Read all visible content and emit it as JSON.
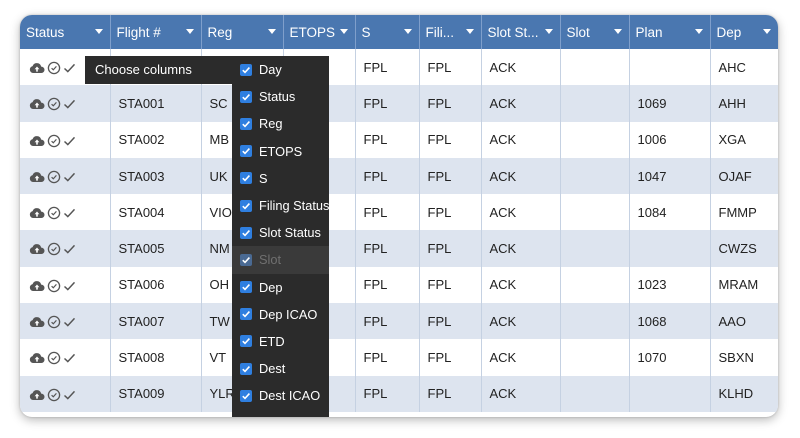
{
  "columns": [
    {
      "key": "status",
      "label": "Status"
    },
    {
      "key": "flight",
      "label": "Flight #"
    },
    {
      "key": "reg",
      "label": "Reg"
    },
    {
      "key": "etops",
      "label": "ETOPS"
    },
    {
      "key": "s",
      "label": "S"
    },
    {
      "key": "filing",
      "label": "Fili..."
    },
    {
      "key": "slotstatus",
      "label": "Slot St..."
    },
    {
      "key": "slot",
      "label": "Slot"
    },
    {
      "key": "plan",
      "label": "Plan"
    },
    {
      "key": "dep",
      "label": "Dep"
    }
  ],
  "rows": [
    {
      "flight": "",
      "reg": "",
      "etops": "",
      "s": "FPL",
      "filing": "FPL",
      "slotstatus": "ACK",
      "slot": "",
      "plan": "",
      "dep": "AHC"
    },
    {
      "flight": "STA001",
      "reg": "SC",
      "etops": "",
      "s": "FPL",
      "filing": "FPL",
      "slotstatus": "ACK",
      "slot": "",
      "plan": "1069",
      "dep": "AHH"
    },
    {
      "flight": "STA002",
      "reg": "MB",
      "etops": "",
      "s": "FPL",
      "filing": "FPL",
      "slotstatus": "ACK",
      "slot": "",
      "plan": "1006",
      "dep": "XGA"
    },
    {
      "flight": "STA003",
      "reg": "UK",
      "etops": "",
      "s": "FPL",
      "filing": "FPL",
      "slotstatus": "ACK",
      "slot": "",
      "plan": "1047",
      "dep": "OJAF"
    },
    {
      "flight": "STA004",
      "reg": "VIO",
      "etops": "",
      "s": "FPL",
      "filing": "FPL",
      "slotstatus": "ACK",
      "slot": "",
      "plan": "1084",
      "dep": "FMMP"
    },
    {
      "flight": "STA005",
      "reg": "NM",
      "etops": "",
      "s": "FPL",
      "filing": "FPL",
      "slotstatus": "ACK",
      "slot": "",
      "plan": "",
      "dep": "CWZS"
    },
    {
      "flight": "STA006",
      "reg": "OH",
      "etops": "",
      "s": "FPL",
      "filing": "FPL",
      "slotstatus": "ACK",
      "slot": "",
      "plan": "1023",
      "dep": "MRAM"
    },
    {
      "flight": "STA007",
      "reg": "TW",
      "etops": "",
      "s": "FPL",
      "filing": "FPL",
      "slotstatus": "ACK",
      "slot": "",
      "plan": "1068",
      "dep": "AAO"
    },
    {
      "flight": "STA008",
      "reg": "VT",
      "etops": "",
      "s": "FPL",
      "filing": "FPL",
      "slotstatus": "ACK",
      "slot": "",
      "plan": "1070",
      "dep": "SBXN"
    },
    {
      "flight": "STA009",
      "reg": "YLR",
      "etops": "",
      "s": "FPL",
      "filing": "FPL",
      "slotstatus": "ACK",
      "slot": "",
      "plan": "",
      "dep": "KLHD"
    }
  ],
  "status_icons": [
    "cloud-upload-icon",
    "clock-circle-icon",
    "checkmark-icon"
  ],
  "column_menu": {
    "title": "Choose columns",
    "items": [
      {
        "label": "Day",
        "checked": true,
        "disabled": false
      },
      {
        "label": "Status",
        "checked": true,
        "disabled": false
      },
      {
        "label": "Reg",
        "checked": true,
        "disabled": false
      },
      {
        "label": "ETOPS",
        "checked": true,
        "disabled": false
      },
      {
        "label": "S",
        "checked": true,
        "disabled": false
      },
      {
        "label": "Filing Status",
        "checked": true,
        "disabled": false
      },
      {
        "label": "Slot Status",
        "checked": true,
        "disabled": false
      },
      {
        "label": "Slot",
        "checked": true,
        "disabled": true
      },
      {
        "label": "Dep",
        "checked": true,
        "disabled": false
      },
      {
        "label": "Dep ICAO",
        "checked": true,
        "disabled": false
      },
      {
        "label": "ETD",
        "checked": true,
        "disabled": false
      },
      {
        "label": "Dest",
        "checked": true,
        "disabled": false
      },
      {
        "label": "Dest ICAO",
        "checked": true,
        "disabled": false
      }
    ]
  },
  "colors": {
    "header_bg": "#4a77b0",
    "row_alt": "#dde4ef",
    "menu_bg": "#2b2b2b",
    "checkbox": "#2f7fe0"
  }
}
